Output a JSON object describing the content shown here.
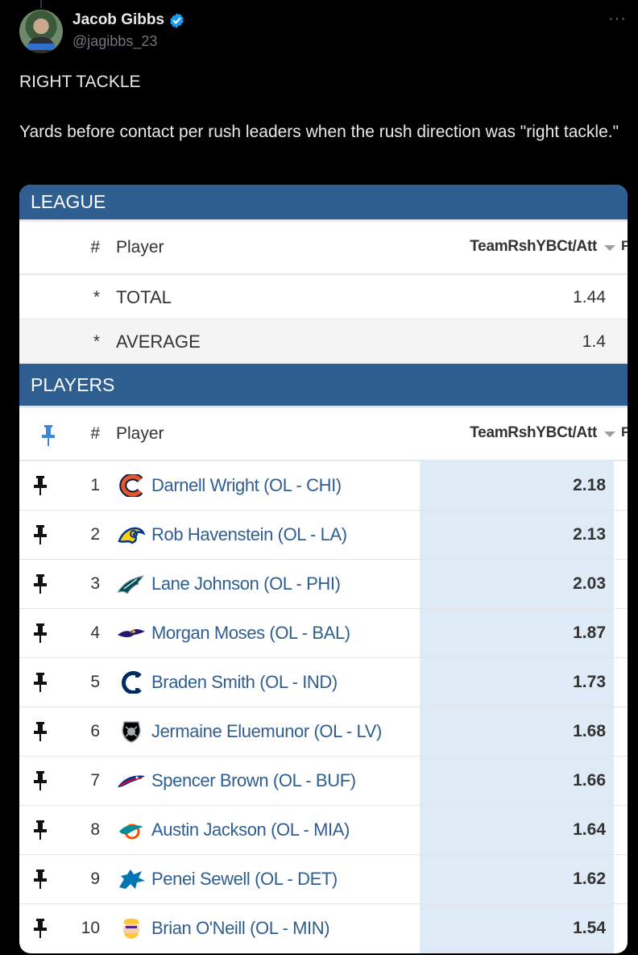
{
  "tweet": {
    "author": {
      "display_name": "Jacob Gibbs",
      "handle": "@jagibbs_23",
      "verified": true,
      "avatar_tag": "jagibbs_23"
    },
    "more_label": "···",
    "text_line1": "RIGHT TACKLE",
    "text_line2": "Yards before contact per rush leaders when the rush direction was \"right tackle.\""
  },
  "table": {
    "league_section": "LEAGUE",
    "players_section": "PLAYERS",
    "columns": {
      "num": "#",
      "player": "Player",
      "stat": "TeamRshYBCt/Att",
      "next_cut": "F"
    },
    "summary": [
      {
        "marker": "*",
        "label": "TOTAL",
        "value": "1.44"
      },
      {
        "marker": "*",
        "label": "AVERAGE",
        "value": "1.4"
      }
    ],
    "players": [
      {
        "rank": "1",
        "name": "Darnell Wright (OL - CHI)",
        "value": "2.18",
        "team_icon": "bears-logo-icon"
      },
      {
        "rank": "2",
        "name": "Rob Havenstein (OL - LA)",
        "value": "2.13",
        "team_icon": "rams-logo-icon"
      },
      {
        "rank": "3",
        "name": "Lane Johnson (OL - PHI)",
        "value": "2.03",
        "team_icon": "eagles-logo-icon"
      },
      {
        "rank": "4",
        "name": "Morgan Moses (OL - BAL)",
        "value": "1.87",
        "team_icon": "ravens-logo-icon"
      },
      {
        "rank": "5",
        "name": "Braden Smith (OL - IND)",
        "value": "1.73",
        "team_icon": "colts-logo-icon"
      },
      {
        "rank": "6",
        "name": "Jermaine Eluemunor (OL - LV)",
        "value": "1.68",
        "team_icon": "raiders-logo-icon"
      },
      {
        "rank": "7",
        "name": "Spencer Brown (OL - BUF)",
        "value": "1.66",
        "team_icon": "bills-logo-icon"
      },
      {
        "rank": "8",
        "name": "Austin Jackson (OL - MIA)",
        "value": "1.64",
        "team_icon": "dolphins-logo-icon"
      },
      {
        "rank": "9",
        "name": "Penei Sewell (OL - DET)",
        "value": "1.62",
        "team_icon": "lions-logo-icon"
      },
      {
        "rank": "10",
        "name": "Brian O'Neill (OL - MIN)",
        "value": "1.54",
        "team_icon": "vikings-logo-icon"
      }
    ]
  },
  "colors": {
    "section_bar": "#2f5e91",
    "link": "#2f5e91",
    "highlight_column": "#deebf6",
    "verified": "#1d9bf0"
  }
}
